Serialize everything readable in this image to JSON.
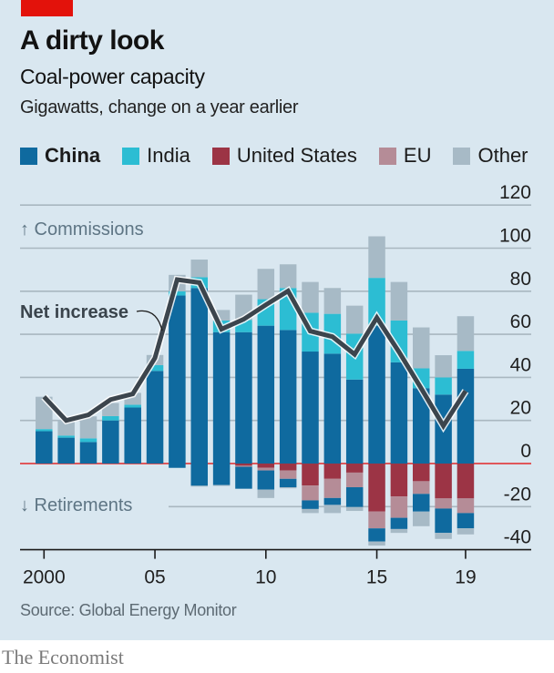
{
  "header": {
    "title": "A dirty look",
    "subtitle": "Coal-power capacity",
    "unit": "Gigawatts, change on a year earlier"
  },
  "legend": [
    {
      "key": "china",
      "label": "China",
      "color": "#0f6a9f",
      "bold": true
    },
    {
      "key": "india",
      "label": "India",
      "color": "#2cbdd3",
      "bold": false
    },
    {
      "key": "us",
      "label": "United States",
      "color": "#9c3445",
      "bold": false
    },
    {
      "key": "eu",
      "label": "EU",
      "color": "#b58c97",
      "bold": false
    },
    {
      "key": "other",
      "label": "Other",
      "color": "#a7bac6",
      "bold": false
    }
  ],
  "annotations": {
    "commissions": "↑ Commissions",
    "retirements": "↓ Retirements",
    "net_increase": "Net increase"
  },
  "source": "Source: Global Energy Monitor",
  "brand": "The Economist",
  "colors": {
    "background": "#d9e7f0",
    "accent_red": "#e3120b",
    "zero_line": "#e0575a",
    "grid": "#a9b7c0",
    "net_line": "#3c454d"
  },
  "chart_data": {
    "type": "bar",
    "stacked": true,
    "title": "A dirty look",
    "subtitle": "Coal-power capacity",
    "ylabel": "Gigawatts, change on a year earlier",
    "xlabel": "",
    "x": [
      2000,
      2001,
      2002,
      2003,
      2004,
      2005,
      2006,
      2007,
      2008,
      2009,
      2010,
      2011,
      2012,
      2013,
      2014,
      2015,
      2016,
      2017,
      2018,
      2019
    ],
    "x_tick_values": [
      2000,
      2005,
      2010,
      2015,
      2019
    ],
    "x_tick_labels": [
      "2000",
      "05",
      "10",
      "15",
      "19"
    ],
    "y_ticks": [
      120,
      100,
      80,
      60,
      40,
      20,
      0,
      -20,
      -40
    ],
    "ylim": [
      -40,
      120
    ],
    "y_axis_side": "right",
    "grid": true,
    "legend_position": "top",
    "commissions": [
      {
        "name": "China",
        "values": [
          15,
          12,
          10,
          20,
          26,
          43,
          78,
          81.5,
          61,
          61,
          64,
          62,
          52,
          51,
          39,
          64,
          47,
          35,
          32,
          44
        ]
      },
      {
        "name": "India",
        "values": [
          1,
          1,
          1.7,
          2,
          1.3,
          2.7,
          2,
          5,
          5.4,
          5.7,
          12.3,
          19.5,
          18,
          18.5,
          21.3,
          22.2,
          19.4,
          9.2,
          8,
          8.3
        ]
      },
      {
        "name": "Other",
        "values": [
          15,
          7.3,
          10.2,
          6.1,
          5.5,
          4.7,
          7.6,
          8.2,
          4.9,
          11.7,
          14.1,
          11,
          14.3,
          12,
          13,
          19.3,
          17.9,
          19,
          10.3,
          16.1
        ]
      }
    ],
    "retirements": [
      {
        "name": "United States",
        "values": [
          0,
          0,
          0,
          0,
          0,
          0,
          0,
          0,
          0,
          -1,
          -2,
          -3.2,
          -10.2,
          -7.1,
          -4.2,
          -22.3,
          -15.3,
          -8.2,
          -16.2,
          -16.2
        ]
      },
      {
        "name": "EU",
        "values": [
          0,
          0,
          0,
          0,
          0,
          0,
          0,
          0,
          0,
          -0.5,
          -1.2,
          -3.9,
          -6.9,
          -8.9,
          -6.8,
          -7.8,
          -9.9,
          -5.9,
          -4.7,
          -6.8
        ]
      },
      {
        "name": "China",
        "values": [
          0,
          0,
          0,
          0,
          0,
          0,
          -2,
          -10.3,
          -10,
          -10.2,
          -8.9,
          -3.9,
          -4,
          -3.2,
          -9.2,
          -6.1,
          -5.2,
          -8.2,
          -11.3,
          -7.1
        ]
      },
      {
        "name": "Other",
        "values": [
          0,
          0,
          0,
          0,
          0,
          0,
          0,
          -0.4,
          -0.4,
          0,
          -3.9,
          -0.5,
          -1.9,
          -3.8,
          -1.8,
          -1.9,
          -1.8,
          -6.8,
          -2.8,
          -2.8
        ]
      }
    ],
    "net_increase": {
      "name": "Net increase",
      "values": [
        31,
        20,
        22.6,
        29.7,
        32.3,
        49,
        85.4,
        84,
        62.4,
        67,
        73.7,
        80.1,
        61.5,
        58.9,
        50.7,
        67.7,
        51.8,
        34.9,
        17.5,
        33.7
      ]
    }
  }
}
